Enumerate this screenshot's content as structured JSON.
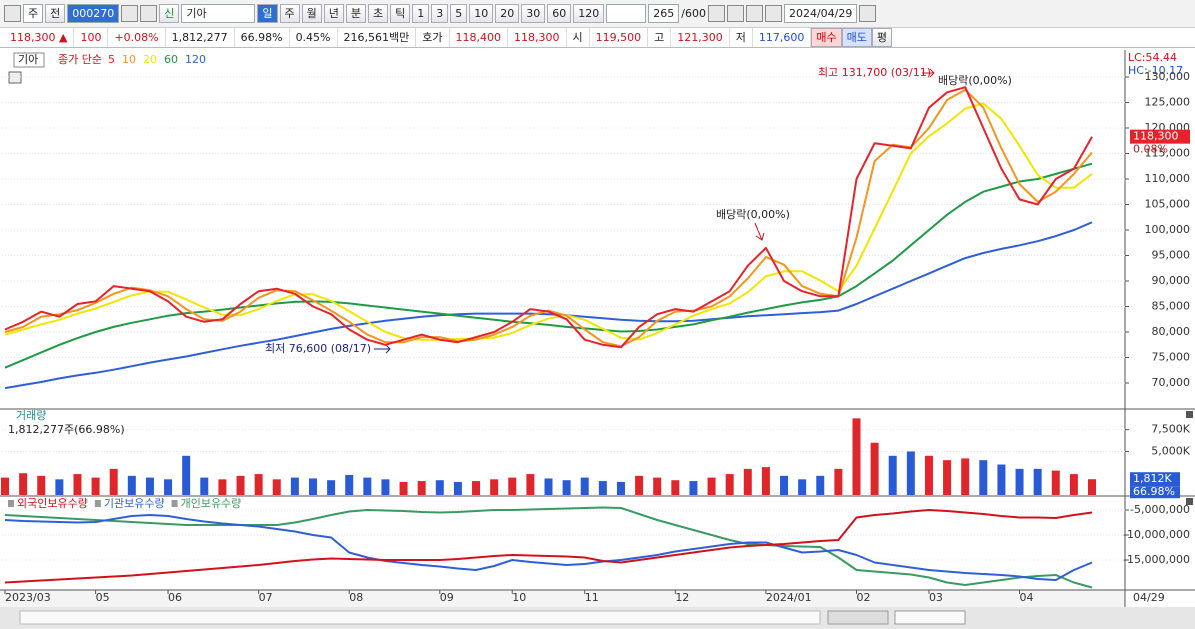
{
  "toolbar": {
    "mode1": "주",
    "mode2": "전",
    "code": "000270",
    "name_prefix": "신",
    "name": "기아",
    "periods": [
      "일",
      "주",
      "월",
      "년",
      "분",
      "초",
      "틱"
    ],
    "intervals": [
      "1",
      "3",
      "5",
      "10",
      "20",
      "30",
      "60",
      "120"
    ],
    "count": "265",
    "max": "/600",
    "date": "2024/04/29"
  },
  "info_bar": {
    "price": "118,300 ▲",
    "change": "100",
    "rate": "+0.08%",
    "volume": "1,812,277",
    "volume_rate": "66.98%",
    "turnover": "0.45%",
    "amount": "216,561백만",
    "ask_label": "호가",
    "ask": "118,400",
    "bid": "118,300",
    "open_label": "시",
    "open": "119,500",
    "high_label": "고",
    "high": "121,300",
    "low_label": "저",
    "low": "117,600",
    "buy": "매수",
    "sell": "매도",
    "avg": "평"
  },
  "chart_data": [
    {
      "type": "line",
      "title": "기아",
      "legend_title": "종가 단순",
      "lc": "LC:54.44",
      "hc": "HC:-10.17",
      "categories": [
        "2023/03",
        null,
        null,
        null,
        null,
        "05",
        null,
        null,
        null,
        "06",
        null,
        null,
        null,
        null,
        "07",
        null,
        null,
        null,
        null,
        "08",
        null,
        null,
        null,
        null,
        "09",
        null,
        null,
        null,
        "10",
        null,
        null,
        null,
        "11",
        null,
        null,
        null,
        null,
        "12",
        null,
        null,
        null,
        null,
        "2024/01",
        null,
        null,
        null,
        null,
        "02",
        null,
        null,
        null,
        "03",
        null,
        null,
        null,
        null,
        "04",
        null,
        null,
        null,
        null
      ],
      "x_end_label": "04/29",
      "series": [
        {
          "name": "5",
          "color": "#e8222b",
          "values": [
            80500,
            82000,
            84000,
            83000,
            85500,
            86000,
            89000,
            88500,
            88000,
            86000,
            83000,
            82000,
            82500,
            85500,
            88000,
            88500,
            87500,
            85000,
            83500,
            80500,
            78500,
            77500,
            78500,
            79500,
            78500,
            78000,
            79000,
            80000,
            82000,
            84500,
            84000,
            82500,
            78500,
            77500,
            77000,
            81000,
            83500,
            84500,
            84000,
            86000,
            88000,
            93000,
            96500,
            90000,
            88000,
            87000,
            87000,
            110000,
            117000,
            116500,
            116000,
            124000,
            127000,
            128000,
            120000,
            112000,
            106000,
            105000,
            110000,
            112000,
            118300
          ]
        },
        {
          "name": "10",
          "color": "#f7941d",
          "values": [
            80000,
            81000,
            83000,
            83500,
            84300,
            85700,
            87500,
            88700,
            88200,
            87000,
            84500,
            82500,
            82200,
            84000,
            86700,
            88200,
            88000,
            86200,
            84200,
            82000,
            79500,
            78000,
            78000,
            79000,
            79000,
            78200,
            78500,
            79500,
            81000,
            83200,
            84200,
            83200,
            80500,
            78000,
            77200,
            79000,
            82200,
            84000,
            84200,
            85000,
            87000,
            90500,
            94700,
            93200,
            89000,
            87500,
            87000,
            98500,
            113500,
            116700,
            116200,
            120000,
            125500,
            127500,
            124000,
            116000,
            109000,
            105500,
            107500,
            111000,
            115200
          ]
        },
        {
          "name": "20",
          "color": "#f2e600",
          "values": [
            79500,
            80500,
            81500,
            82400,
            83600,
            84600,
            85900,
            87200,
            87900,
            87900,
            86400,
            84800,
            83400,
            83300,
            84500,
            86100,
            87400,
            87400,
            86100,
            84100,
            82000,
            80000,
            78800,
            78500,
            78500,
            78600,
            78700,
            78900,
            79800,
            81400,
            82600,
            83300,
            82400,
            80600,
            78900,
            78500,
            79800,
            81500,
            83200,
            84500,
            85600,
            87800,
            90900,
            91900,
            91900,
            90100,
            88000,
            93000,
            100300,
            107600,
            115000,
            118400,
            120900,
            123800,
            124800,
            121800,
            116500,
            110800,
            108300,
            108300,
            111000
          ]
        },
        {
          "name": "60",
          "color": "#1f9a45",
          "values": [
            73000,
            74500,
            76000,
            77500,
            78800,
            80000,
            81000,
            81800,
            82500,
            83200,
            83700,
            84000,
            84400,
            84800,
            85200,
            85600,
            85900,
            86000,
            85900,
            85600,
            85200,
            84800,
            84400,
            84000,
            83600,
            83200,
            82800,
            82400,
            82000,
            81700,
            81400,
            81000,
            80700,
            80400,
            80100,
            80200,
            80500,
            81000,
            81500,
            82300,
            83000,
            83800,
            84500,
            85200,
            85800,
            86300,
            87000,
            89000,
            91500,
            94000,
            97000,
            100000,
            103000,
            105500,
            107500,
            108500,
            109500,
            110000,
            111000,
            112000,
            113000
          ]
        },
        {
          "name": "120",
          "color": "#2f5fd8",
          "values": [
            69000,
            69600,
            70200,
            70900,
            71500,
            72000,
            72600,
            73300,
            74000,
            74600,
            75200,
            75900,
            76600,
            77300,
            77900,
            78500,
            79200,
            79900,
            80600,
            81200,
            81700,
            82200,
            82600,
            83000,
            83300,
            83500,
            83600,
            83600,
            83600,
            83600,
            83500,
            83300,
            83000,
            82700,
            82400,
            82200,
            82100,
            82100,
            82200,
            82500,
            82800,
            83100,
            83300,
            83500,
            83700,
            83900,
            84200,
            85500,
            87000,
            88500,
            90000,
            91500,
            93000,
            94500,
            95500,
            96300,
            97000,
            97800,
            98800,
            100000,
            101500
          ]
        }
      ],
      "current_tag": {
        "value": 118300,
        "label": "118,300",
        "change": "0.08%",
        "color": "#e8222b"
      },
      "annotations": [
        {
          "text": "최고 131,700 (03/11)"
        },
        {
          "text": "배당락(0,00%)"
        },
        {
          "text": "배당락(0,00%)"
        },
        {
          "text": "최저 76,600 (08/17)"
        }
      ],
      "ylim": [
        65100,
        134900
      ],
      "yticks": [
        {
          "value": 70000,
          "label": "70,000"
        },
        {
          "value": 75000,
          "label": "75,000"
        },
        {
          "value": 80000,
          "label": "80,000"
        },
        {
          "value": 85000,
          "label": "85,000"
        },
        {
          "value": 90000,
          "label": "90,000"
        },
        {
          "value": 95000,
          "label": "95,000"
        },
        {
          "value": 100000,
          "label": "100,000"
        },
        {
          "value": 105000,
          "label": "105,000"
        },
        {
          "value": 110000,
          "label": "110,000"
        },
        {
          "value": 115000,
          "label": "115,000"
        },
        {
          "value": 120000,
          "label": "120,000"
        },
        {
          "value": 125000,
          "label": "125,000"
        },
        {
          "value": 130000,
          "label": "130,000"
        }
      ],
      "grid": true
    },
    {
      "type": "bar",
      "title": "거래량",
      "subtitle": "1,812,277주(66.98%)",
      "up_color": "#e0262b",
      "down_color": "#2a5bd7",
      "values": [
        2000,
        2500,
        2200,
        1800,
        2400,
        2000,
        3000,
        2200,
        2000,
        1800,
        4500,
        2000,
        1800,
        2200,
        2400,
        1800,
        2000,
        1900,
        1700,
        2300,
        2000,
        1800,
        1500,
        1600,
        1700,
        1500,
        1600,
        1800,
        2000,
        2400,
        1900,
        1700,
        2000,
        1600,
        1500,
        2200,
        2000,
        1700,
        1600,
        2000,
        2400,
        3000,
        3200,
        2200,
        1800,
        2200,
        3000,
        8800,
        6000,
        4500,
        5000,
        4500,
        4000,
        4200,
        4000,
        3500,
        3000,
        3000,
        2800,
        2400,
        1812
      ],
      "current_tag": {
        "value": 1812,
        "label": "1,812K",
        "rate": "66.98%",
        "color": "#2a5bd7"
      },
      "ylim": [
        0,
        9760
      ],
      "yticks": [
        {
          "value": 5000,
          "label": "5,000K"
        },
        {
          "value": 7500,
          "label": "7,500K"
        }
      ],
      "grid": true
    },
    {
      "type": "line",
      "series": [
        {
          "name": "외국인보유수량",
          "color": "#d0121b",
          "values": [
            -19500000,
            -19300000,
            -19100000,
            -18900000,
            -18700000,
            -18500000,
            -18300000,
            -18100000,
            -17800000,
            -17500000,
            -17200000,
            -16900000,
            -16600000,
            -16300000,
            -16000000,
            -15600000,
            -15200000,
            -14900000,
            -14700000,
            -14800000,
            -14900000,
            -15000000,
            -15000000,
            -15000000,
            -15000000,
            -14800000,
            -14500000,
            -14200000,
            -14000000,
            -14100000,
            -14200000,
            -14300000,
            -14500000,
            -15200000,
            -15500000,
            -15000000,
            -14500000,
            -14000000,
            -13500000,
            -13000000,
            -12500000,
            -12200000,
            -12000000,
            -11800000,
            -11500000,
            -11200000,
            -11000000,
            -6500000,
            -6000000,
            -5700000,
            -5300000,
            -5000000,
            -5200000,
            -5500000,
            -5800000,
            -6200000,
            -6500000,
            -6500000,
            -6600000,
            -6000000,
            -5500000
          ]
        },
        {
          "name": "기관보유수량",
          "color": "#2f5fd8",
          "values": [
            -7000000,
            -7200000,
            -7300000,
            -7400000,
            -7500000,
            -7400000,
            -6800000,
            -6200000,
            -6000000,
            -6200000,
            -6800000,
            -7300000,
            -7700000,
            -8000000,
            -8300000,
            -8800000,
            -9300000,
            -10000000,
            -10500000,
            -13500000,
            -14500000,
            -15200000,
            -15600000,
            -16000000,
            -16300000,
            -16700000,
            -17000000,
            -16200000,
            -15000000,
            -15400000,
            -15700000,
            -16000000,
            -15800000,
            -15300000,
            -15000000,
            -14500000,
            -14000000,
            -13300000,
            -12800000,
            -12300000,
            -11800000,
            -11500000,
            -11500000,
            -12500000,
            -13500000,
            -13300000,
            -13000000,
            -14000000,
            -15500000,
            -16000000,
            -16500000,
            -17000000,
            -17300000,
            -17600000,
            -17800000,
            -18000000,
            -18300000,
            -18800000,
            -19000000,
            -17000000,
            -15500000
          ]
        },
        {
          "name": "개인보유수량",
          "color": "#3a9a62",
          "values": [
            -6000000,
            -6200000,
            -6400000,
            -6600000,
            -6800000,
            -7000000,
            -7200000,
            -7400000,
            -7600000,
            -7800000,
            -8000000,
            -8000000,
            -8000000,
            -8000000,
            -8000000,
            -8000000,
            -7500000,
            -6800000,
            -6000000,
            -5300000,
            -5000000,
            -5100000,
            -5200000,
            -5400000,
            -5500000,
            -5400000,
            -5200000,
            -5000000,
            -5000000,
            -4900000,
            -4800000,
            -4700000,
            -4600000,
            -4500000,
            -4600000,
            -5800000,
            -7000000,
            -8000000,
            -9000000,
            -10000000,
            -11000000,
            -11800000,
            -12000000,
            -12200000,
            -12300000,
            -12400000,
            -14500000,
            -17000000,
            -17300000,
            -17600000,
            -17900000,
            -18500000,
            -19500000,
            -20000000,
            -19500000,
            -19000000,
            -18500000,
            -18200000,
            -18000000,
            -19500000,
            -20500000
          ]
        }
      ],
      "ylim": [
        -21000000,
        -2400000
      ],
      "yticks": [
        {
          "value": -15000000,
          "label": "-15,000,000"
        },
        {
          "value": -10000000,
          "label": "-10,000,000"
        },
        {
          "value": -5000000,
          "label": "-5,000,000"
        }
      ],
      "grid": true
    }
  ]
}
